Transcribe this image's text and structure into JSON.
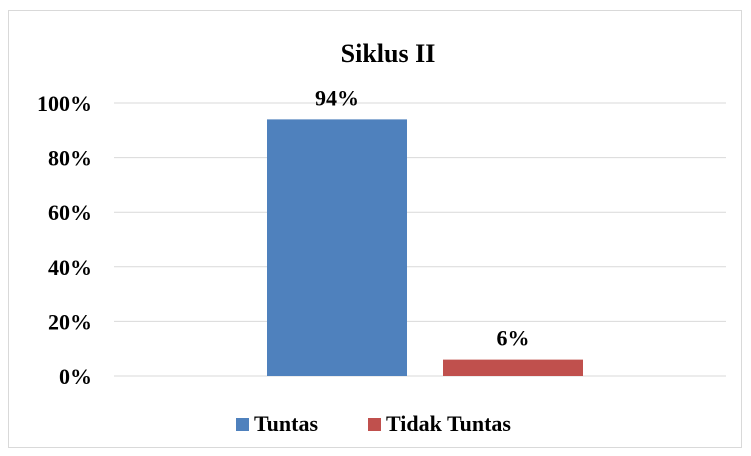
{
  "chart_data": {
    "type": "bar",
    "title": "Siklus II",
    "xlabel": "",
    "ylabel": "",
    "ylim": [
      0,
      100
    ],
    "yticks": [
      "0%",
      "20%",
      "40%",
      "60%",
      "80%",
      "100%"
    ],
    "grid": true,
    "legend_position": "bottom",
    "series": [
      {
        "name": "Tuntas",
        "value": 94,
        "label": "94%",
        "color": "#4f81bd"
      },
      {
        "name": "Tidak Tuntas",
        "value": 6,
        "label": "6%",
        "color": "#c0504d"
      }
    ]
  }
}
